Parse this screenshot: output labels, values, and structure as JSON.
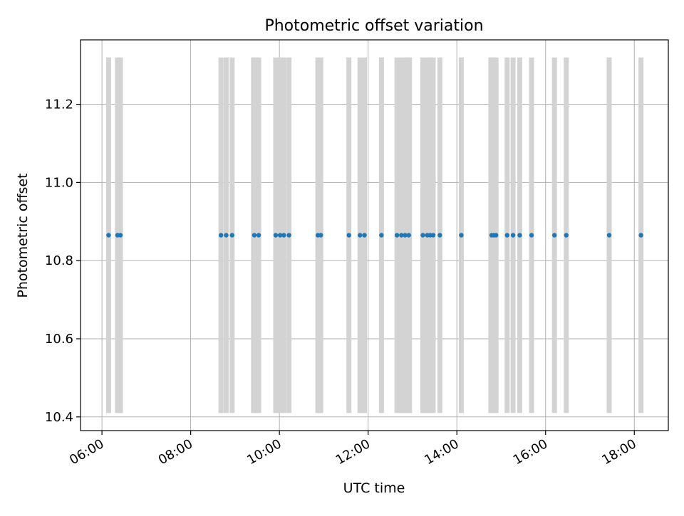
{
  "chart_data": {
    "type": "scatter",
    "title": "Photometric offset variation",
    "xlabel": "UTC time",
    "ylabel": "Photometric offset",
    "x_ticks": [
      "06:00",
      "08:00",
      "10:00",
      "12:00",
      "14:00",
      "16:00",
      "18:00"
    ],
    "y_ticks": [
      "10.4",
      "10.6",
      "10.8",
      "11.0",
      "11.2"
    ],
    "xlim": [
      "05:31",
      "18:46"
    ],
    "ylim": [
      10.365,
      11.365
    ],
    "grid": true,
    "observation_band": [
      10.41,
      11.32
    ],
    "series": [
      {
        "points": [
          [
            "06:09",
            10.865
          ],
          [
            "06:21",
            10.865
          ],
          [
            "06:25",
            10.865
          ],
          [
            "08:41",
            10.865
          ],
          [
            "08:48",
            10.865
          ],
          [
            "08:56",
            10.865
          ],
          [
            "09:26",
            10.865
          ],
          [
            "09:32",
            10.865
          ],
          [
            "09:55",
            10.865
          ],
          [
            "10:01",
            10.865
          ],
          [
            "10:06",
            10.865
          ],
          [
            "10:13",
            10.865
          ],
          [
            "10:52",
            10.865
          ],
          [
            "10:56",
            10.865
          ],
          [
            "11:34",
            10.865
          ],
          [
            "11:49",
            10.865
          ],
          [
            "11:55",
            10.865
          ],
          [
            "12:18",
            10.865
          ],
          [
            "12:39",
            10.865
          ],
          [
            "12:45",
            10.865
          ],
          [
            "12:50",
            10.865
          ],
          [
            "12:55",
            10.865
          ],
          [
            "13:14",
            10.865
          ],
          [
            "13:20",
            10.865
          ],
          [
            "13:24",
            10.865
          ],
          [
            "13:28",
            10.865
          ],
          [
            "13:37",
            10.865
          ],
          [
            "14:06",
            10.865
          ],
          [
            "14:47",
            10.865
          ],
          [
            "14:50",
            10.865
          ],
          [
            "14:53",
            10.865
          ],
          [
            "15:08",
            10.865
          ],
          [
            "15:16",
            10.865
          ],
          [
            "15:25",
            10.865
          ],
          [
            "15:41",
            10.865
          ],
          [
            "16:12",
            10.865
          ],
          [
            "16:28",
            10.865
          ],
          [
            "17:26",
            10.865
          ],
          [
            "18:09",
            10.865
          ]
        ]
      }
    ],
    "bands": [
      "06:09",
      "06:21",
      "06:25",
      "08:41",
      "08:48",
      "08:56",
      "09:25",
      "09:28",
      "09:32",
      "09:55",
      "10:01",
      "10:06",
      "10:13",
      "10:52",
      "10:56",
      "11:34",
      "11:49",
      "11:55",
      "12:18",
      "12:39",
      "12:45",
      "12:49",
      "12:53",
      "12:56",
      "13:14",
      "13:20",
      "13:24",
      "13:28",
      "13:37",
      "14:06",
      "14:46",
      "14:49",
      "14:53",
      "15:08",
      "15:16",
      "15:25",
      "15:41",
      "16:12",
      "16:28",
      "17:26",
      "18:09"
    ],
    "colors": {
      "points": "#1f77b4",
      "bands": "#d3d3d3",
      "grid": "#b0b0b0",
      "axes": "#000000"
    }
  }
}
